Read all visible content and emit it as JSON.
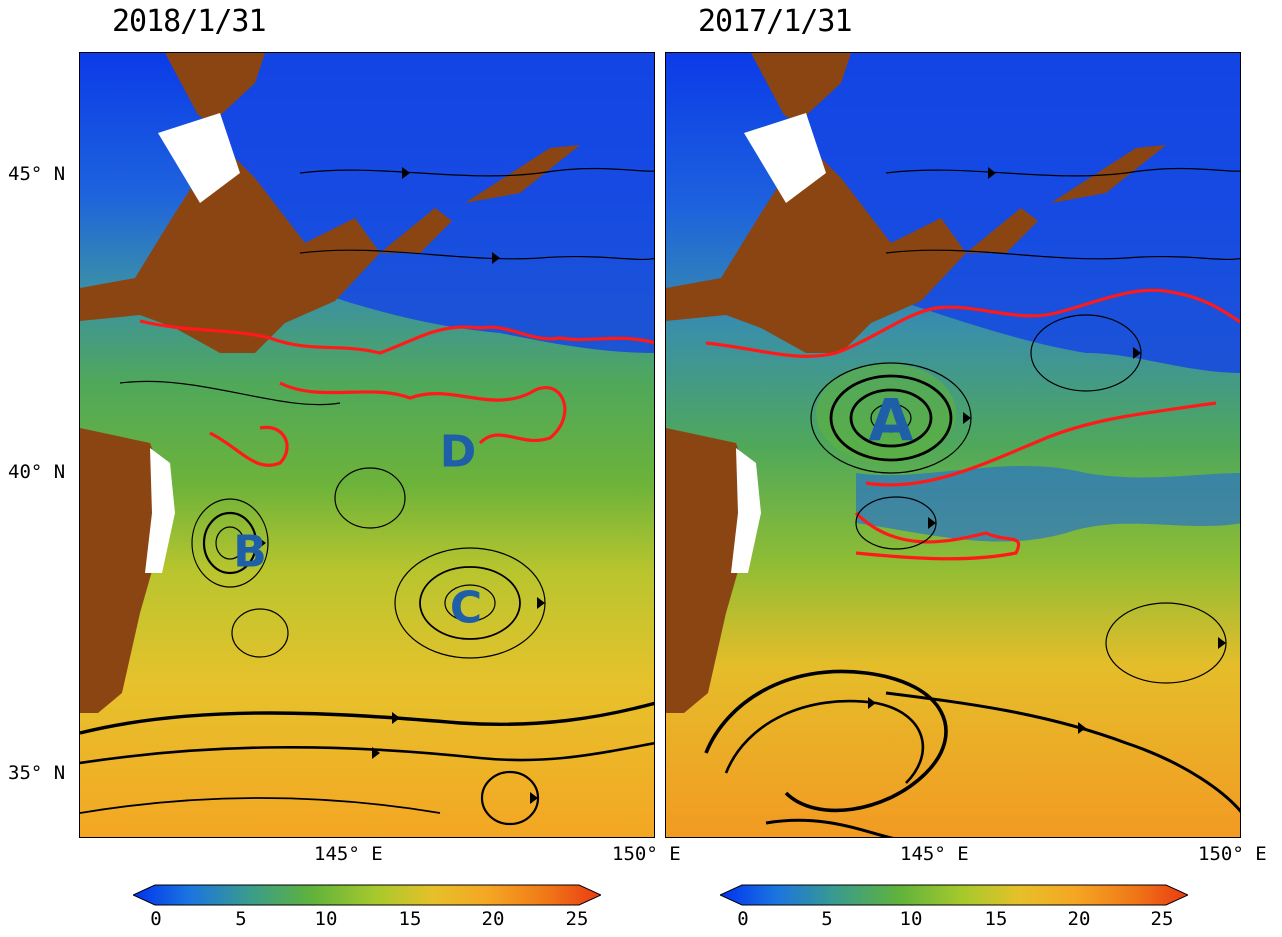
{
  "panels": [
    {
      "title": "2018/1/31",
      "eddy_labels": [
        "D",
        "B",
        "C"
      ]
    },
    {
      "title": "2017/1/31",
      "eddy_labels": [
        "A"
      ]
    }
  ],
  "latitude_labels": [
    "45° N",
    "40° N",
    "35° N"
  ],
  "longitude_labels": {
    "left": [
      "145° E",
      "150° E"
    ],
    "right": [
      "145° E",
      "150° E"
    ]
  },
  "colorbar": {
    "ticks": [
      "0",
      "5",
      "10",
      "15",
      "20",
      "25"
    ],
    "min": 0,
    "max": 25,
    "colors": [
      "#0033ee",
      "#1b74e0",
      "#3a9c8c",
      "#5fb23c",
      "#a7c92c",
      "#e6c02a",
      "#f5a623",
      "#f07a18",
      "#ea3b12"
    ]
  },
  "colors": {
    "land": "#8b4513",
    "contour": "#ff1a1a",
    "label": "#1f5fa8"
  }
}
